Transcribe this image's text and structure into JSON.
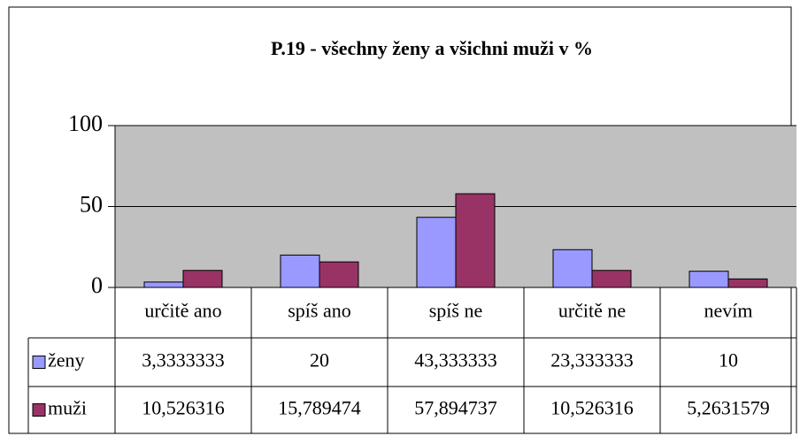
{
  "chart_data": {
    "type": "bar",
    "title": "P.19 - všechny ženy a všichni muži v %",
    "categories": [
      "určitě ano",
      "spíš ano",
      "spíš ne",
      "určitě ne",
      "nevím"
    ],
    "series": [
      {
        "name": "ženy",
        "color": "#9999ff",
        "values": [
          3.3333333,
          20,
          43.333333,
          23.333333,
          10
        ],
        "value_labels": [
          "3,3333333",
          "20",
          "43,333333",
          "23,333333",
          "10"
        ]
      },
      {
        "name": "muži",
        "color": "#993366",
        "values": [
          10.526316,
          15.789474,
          57.894737,
          10.526316,
          5.2631579
        ],
        "value_labels": [
          "10,526316",
          "15,789474",
          "57,894737",
          "10,526316",
          "5,2631579"
        ]
      }
    ],
    "ylim": [
      0,
      100
    ],
    "yticks": [
      0,
      50,
      100
    ],
    "grid": true,
    "plot_background": "#c0c0c0",
    "data_table": true
  }
}
